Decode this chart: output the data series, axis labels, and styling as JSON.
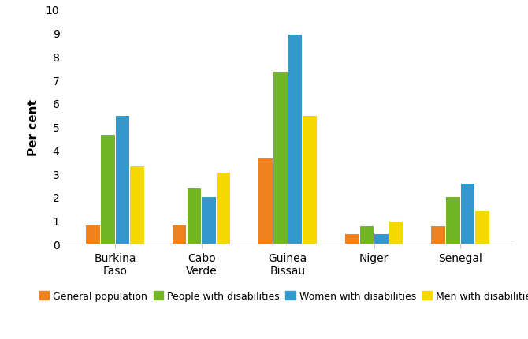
{
  "categories": [
    "Burkina\nFaso",
    "Cabo\nVerde",
    "Guinea\nBissau",
    "Niger",
    "Senegal"
  ],
  "series": {
    "General population": [
      0.8,
      0.8,
      3.65,
      0.4,
      0.75
    ],
    "People with disabilities": [
      4.65,
      2.35,
      7.35,
      0.75,
      1.98
    ],
    "Women with disabilities": [
      5.45,
      1.98,
      8.92,
      0.4,
      2.55
    ],
    "Men with disabilities": [
      3.3,
      3.05,
      5.45,
      0.95,
      1.38
    ]
  },
  "colors": {
    "General population": "#F0821E",
    "People with disabilities": "#72B626",
    "Women with disabilities": "#3399CC",
    "Men with disabilities": "#F5D800"
  },
  "ylabel": "Per cent",
  "ylim": [
    0,
    10
  ],
  "yticks": [
    0,
    1,
    2,
    3,
    4,
    5,
    6,
    7,
    8,
    9,
    10
  ],
  "bar_width": 0.16,
  "background_color": "#ffffff",
  "legend_order": [
    "General population",
    "People with disabilities",
    "Women with disabilities",
    "Men with disabilities"
  ]
}
